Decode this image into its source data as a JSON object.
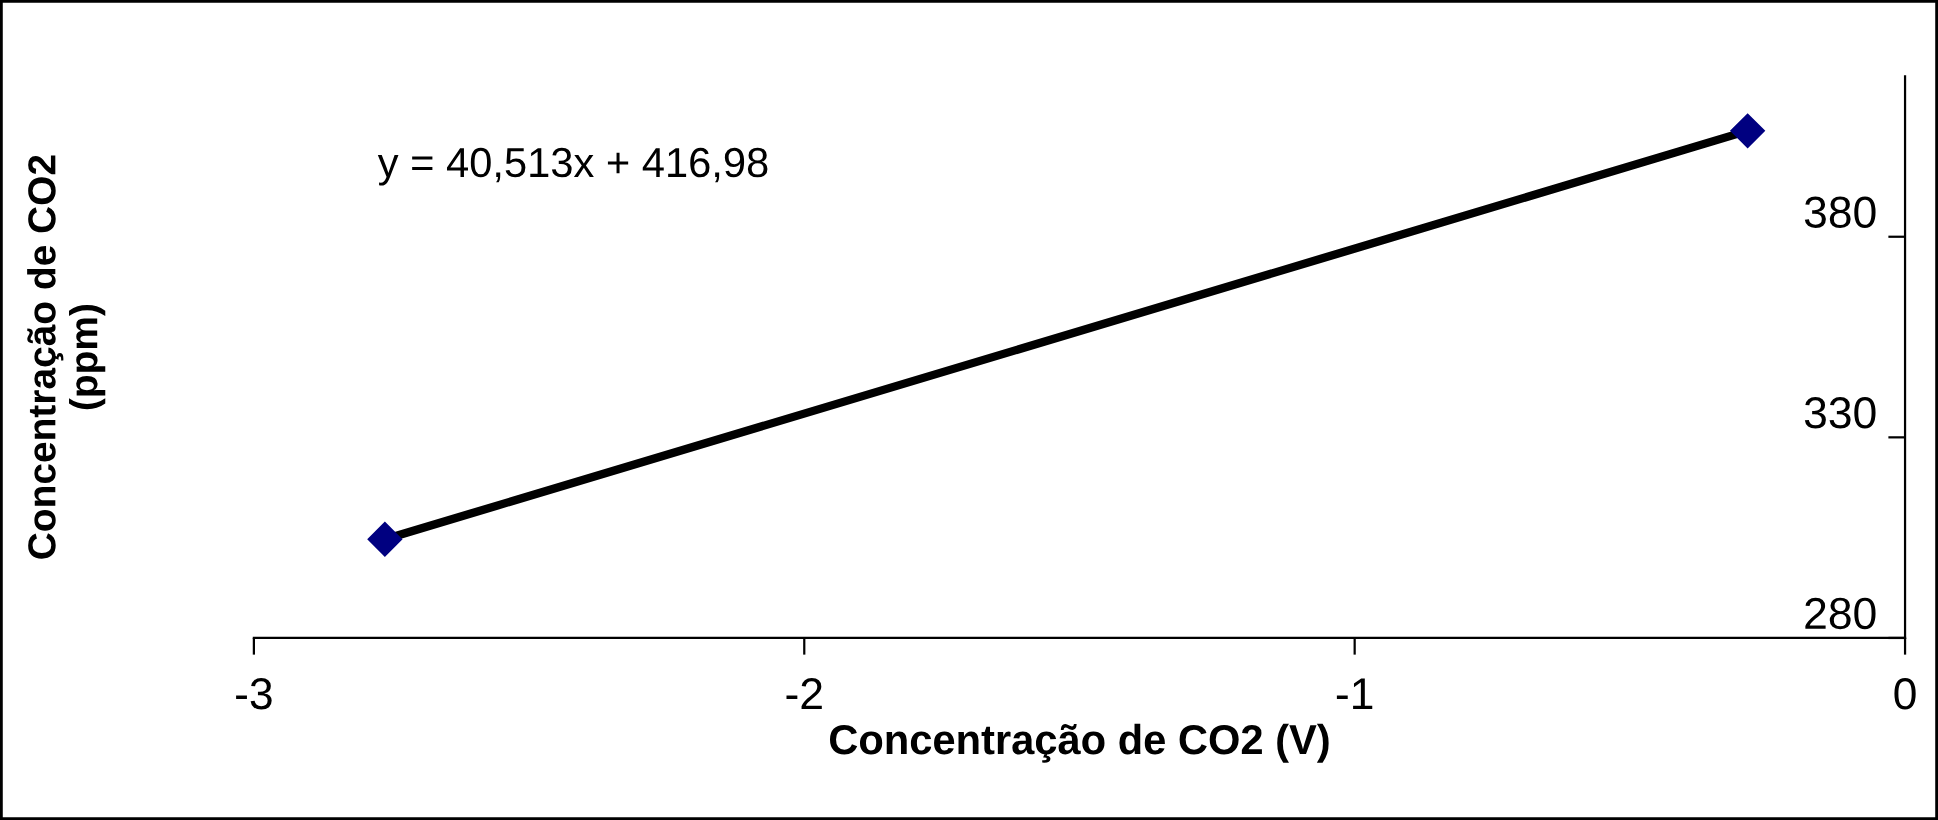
{
  "chart_data": {
    "type": "scatter",
    "xlabel": "Concentração de CO2 (V)",
    "ylabel": "Concentração de CO2\n(ppm)",
    "annotations": [
      "y = 40,513x + 416,98"
    ],
    "x": [
      -2.762,
      -0.286
    ],
    "series": [
      {
        "type": "scatter",
        "color": "#000080",
        "marker": "diamond",
        "values": [
          304.6,
          406.4
        ]
      },
      {
        "type": "line",
        "color": "#000000",
        "marker": "none",
        "line_style": "solid",
        "values": [
          304.6,
          406.4
        ]
      }
    ],
    "xlim": [
      -3,
      0
    ],
    "xticks": [
      -3,
      -2,
      -1,
      0
    ],
    "ylim": [
      280,
      420
    ],
    "yticks": [
      280,
      330,
      380
    ],
    "grid": false,
    "legend": false
  }
}
